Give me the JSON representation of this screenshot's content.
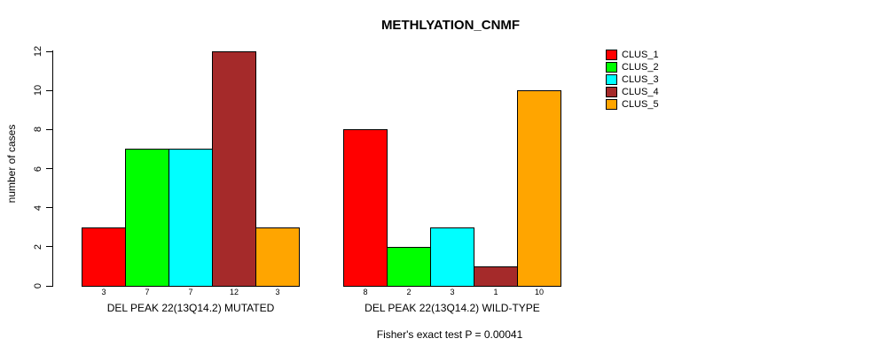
{
  "chart_data": {
    "type": "bar",
    "title": "METHLYATION_CNMF",
    "ylabel": "number of cases",
    "ylim": [
      0,
      12
    ],
    "yticks": [
      0,
      2,
      4,
      6,
      8,
      10,
      12
    ],
    "grid": false,
    "legend_position": "right",
    "series": [
      {
        "name": "CLUS_1",
        "color": "#FF0000"
      },
      {
        "name": "CLUS_2",
        "color": "#00FF00"
      },
      {
        "name": "CLUS_3",
        "color": "#00FFFF"
      },
      {
        "name": "CLUS_4",
        "color": "#A52A2A"
      },
      {
        "name": "CLUS_5",
        "color": "#FFA500"
      }
    ],
    "groups": [
      {
        "label": "DEL PEAK 22(13Q14.2) MUTATED",
        "values": [
          3,
          7,
          7,
          12,
          3
        ]
      },
      {
        "label": "DEL PEAK 22(13Q14.2) WILD-TYPE",
        "values": [
          8,
          2,
          3,
          1,
          10
        ]
      }
    ],
    "bar_value_labels": [
      [
        3,
        7,
        7,
        12,
        3
      ],
      [
        8,
        2,
        3,
        1,
        10
      ]
    ],
    "footnote": "Fisher's exact test P = 0.00041"
  }
}
